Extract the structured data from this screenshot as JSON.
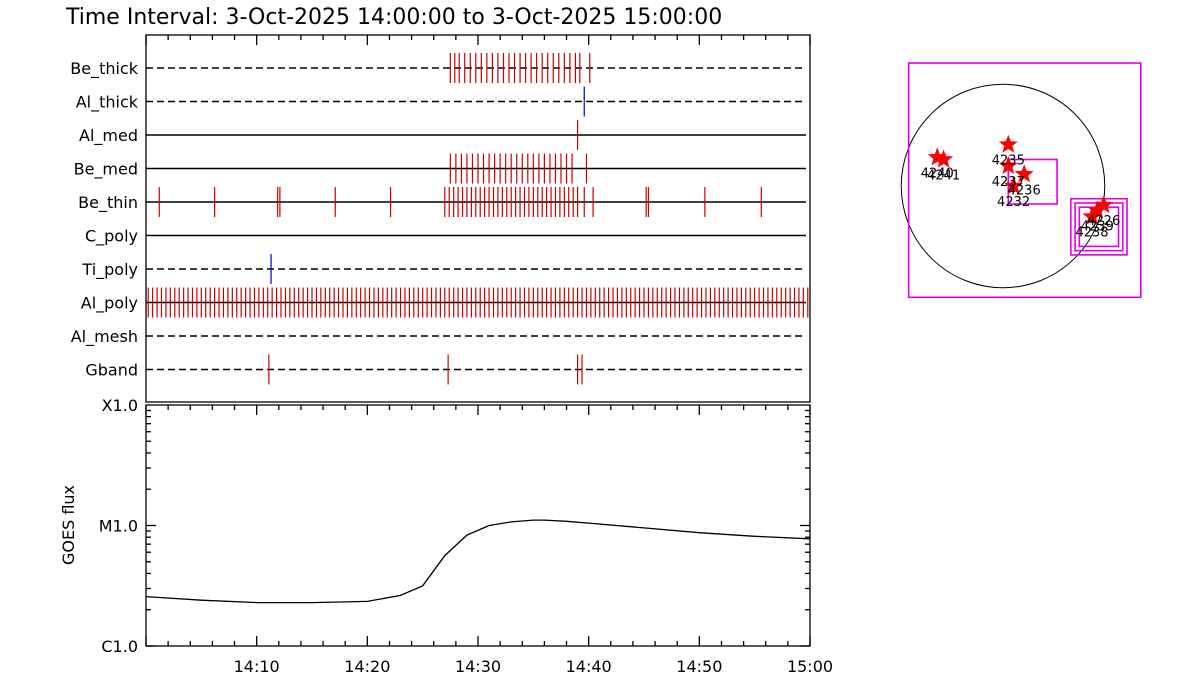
{
  "title": "Time Interval:  3-Oct-2025 14:00:00 to  3-Oct-2025 15:00:00",
  "colors": {
    "event": "#cc0000",
    "event_alt": "#0000cc",
    "box": "#e000e0",
    "star": "#ff0000"
  },
  "chart_data": [
    {
      "type": "event_raster",
      "xlim": [
        "14:00",
        "15:00"
      ],
      "channels": [
        {
          "name": "Be_thick",
          "line": "dashed",
          "color": "red",
          "events_min": [
            27.5,
            27.9,
            28.3,
            28.8,
            29.3,
            29.8,
            30.3,
            30.8,
            31.3,
            31.8,
            32.3,
            32.8,
            33.3,
            33.8,
            34.3,
            34.8,
            35.3,
            35.8,
            36.3,
            36.8,
            37.3,
            37.8,
            38.3,
            38.8,
            39.2,
            40.1
          ]
        },
        {
          "name": "Al_thick",
          "line": "dashed",
          "color": "blue",
          "events_min": [
            39.6
          ]
        },
        {
          "name": "Al_med",
          "line": "solid",
          "color": "red",
          "events_min": [
            39.0
          ]
        },
        {
          "name": "Be_med",
          "line": "solid",
          "color": "red",
          "events_min": [
            27.5,
            28.0,
            28.5,
            29.0,
            29.5,
            30.0,
            30.5,
            31.0,
            31.5,
            32.0,
            32.5,
            33.0,
            33.5,
            34.0,
            34.5,
            35.0,
            35.5,
            36.0,
            36.5,
            37.0,
            37.5,
            38.0,
            38.5,
            39.8
          ]
        },
        {
          "name": "Be_thin",
          "line": "solid",
          "color": "red",
          "events_min": [
            1.2,
            6.2,
            11.9,
            12.1,
            17.1,
            22.1,
            27.0,
            27.4,
            27.8,
            28.2,
            28.6,
            29.0,
            29.4,
            29.8,
            30.2,
            30.6,
            31.0,
            31.4,
            31.8,
            32.2,
            32.6,
            33.0,
            33.4,
            33.8,
            34.2,
            34.6,
            35.0,
            35.4,
            35.8,
            36.2,
            36.6,
            37.0,
            37.4,
            37.8,
            38.2,
            38.6,
            39.0,
            39.6,
            40.4,
            45.2,
            45.4,
            50.5,
            55.6
          ]
        },
        {
          "name": "C_poly",
          "line": "solid",
          "color": "red",
          "events_min": []
        },
        {
          "name": "Ti_poly",
          "line": "dashed",
          "color": "blue",
          "events_min": [
            11.3
          ]
        },
        {
          "name": "Al_poly",
          "line": "solid",
          "color": "red",
          "events_min": [
            0.2,
            0.6,
            1.0,
            1.4,
            1.8,
            2.2,
            2.6,
            3.0,
            3.4,
            3.8,
            4.2,
            4.6,
            5.0,
            5.4,
            5.8,
            6.2,
            6.6,
            7.0,
            7.4,
            7.8,
            8.2,
            8.6,
            9.0,
            9.4,
            9.8,
            10.2,
            10.6,
            11.0,
            11.4,
            11.8,
            12.2,
            12.6,
            13.0,
            13.4,
            13.8,
            14.2,
            14.6,
            15.0,
            15.4,
            15.8,
            16.2,
            16.6,
            17.0,
            17.4,
            17.8,
            18.2,
            18.6,
            19.0,
            19.4,
            19.8,
            20.2,
            20.6,
            21.0,
            21.4,
            21.8,
            22.2,
            22.6,
            23.0,
            23.4,
            23.8,
            24.2,
            24.6,
            25.0,
            25.4,
            25.8,
            26.2,
            26.6,
            27.0,
            27.4,
            27.8,
            28.2,
            28.6,
            29.0,
            29.4,
            29.8,
            30.2,
            30.6,
            31.0,
            31.4,
            31.8,
            32.2,
            32.6,
            33.0,
            33.4,
            33.8,
            34.2,
            34.6,
            35.0,
            35.4,
            35.8,
            36.2,
            36.6,
            37.0,
            37.4,
            37.8,
            38.2,
            38.6,
            39.0,
            39.4,
            39.8,
            40.2,
            40.6,
            41.0,
            41.4,
            41.8,
            42.2,
            42.6,
            43.0,
            43.4,
            43.8,
            44.2,
            44.6,
            45.0,
            45.4,
            45.8,
            46.2,
            46.6,
            47.0,
            47.4,
            47.8,
            48.2,
            48.6,
            49.0,
            49.4,
            49.8,
            50.2,
            50.6,
            51.0,
            51.4,
            51.8,
            52.2,
            52.6,
            53.0,
            53.4,
            53.8,
            54.2,
            54.6,
            55.0,
            55.4,
            55.8,
            56.2,
            56.6,
            57.0,
            57.4,
            57.8,
            58.2,
            58.6,
            59.0,
            59.4,
            59.8
          ]
        },
        {
          "name": "Al_mesh",
          "line": "dashed",
          "color": "red",
          "events_min": []
        },
        {
          "name": "Gband",
          "line": "dashed",
          "color": "red",
          "events_min": [
            11.1,
            27.3,
            39.0,
            39.4
          ]
        }
      ]
    },
    {
      "type": "line",
      "ylabel": "GOES flux",
      "ytick_labels": [
        "X1.0",
        "M1.0",
        "C1.0"
      ],
      "ylog_range": [
        -6,
        -4
      ],
      "xtick_labels": [
        "14:10",
        "14:20",
        "14:30",
        "14:40",
        "14:50",
        "15:00"
      ],
      "xlim_min": [
        0,
        60
      ],
      "series": [
        {
          "x_min": [
            0,
            5,
            10,
            15,
            20,
            23,
            25,
            27,
            29,
            31,
            33,
            35,
            36,
            38,
            40,
            45,
            50,
            55,
            60
          ],
          "log_flux": [
            -5.59,
            -5.62,
            -5.64,
            -5.64,
            -5.63,
            -5.58,
            -5.5,
            -5.25,
            -5.08,
            -5.0,
            -4.97,
            -4.955,
            -4.955,
            -4.965,
            -4.98,
            -5.02,
            -5.06,
            -5.09,
            -5.11
          ]
        }
      ]
    },
    {
      "type": "scatter",
      "name": "sun_map",
      "xlim": [
        -1200,
        1200
      ],
      "ylim": [
        -1200,
        1200
      ],
      "solar_radius": 960,
      "regions": [
        {
          "label": "4240",
          "x": -620,
          "y": 270
        },
        {
          "label": "4241",
          "x": -560,
          "y": 250
        },
        {
          "label": "4235",
          "x": 50,
          "y": 390
        },
        {
          "label": "4237",
          "x": 50,
          "y": 190
        },
        {
          "label": "4236",
          "x": 200,
          "y": 110
        },
        {
          "label": "4232",
          "x": 100,
          "y": 0
        },
        {
          "label": "4226",
          "x": 950,
          "y": -180
        },
        {
          "label": "4238",
          "x": 840,
          "y": -290
        },
        {
          "label": "4239",
          "x": 890,
          "y": -230
        }
      ],
      "boxes": [
        {
          "x0": -890,
          "x1": 1300,
          "y0": 1160,
          "y1": -1050
        },
        {
          "x0": 50,
          "x1": 510,
          "y0": 250,
          "y1": -170
        },
        {
          "x0": 640,
          "x1": 1170,
          "y0": -120,
          "y1": -650
        },
        {
          "x0": 680,
          "x1": 1130,
          "y0": -160,
          "y1": -610
        },
        {
          "x0": 720,
          "x1": 1090,
          "y0": -200,
          "y1": -570
        }
      ]
    }
  ]
}
